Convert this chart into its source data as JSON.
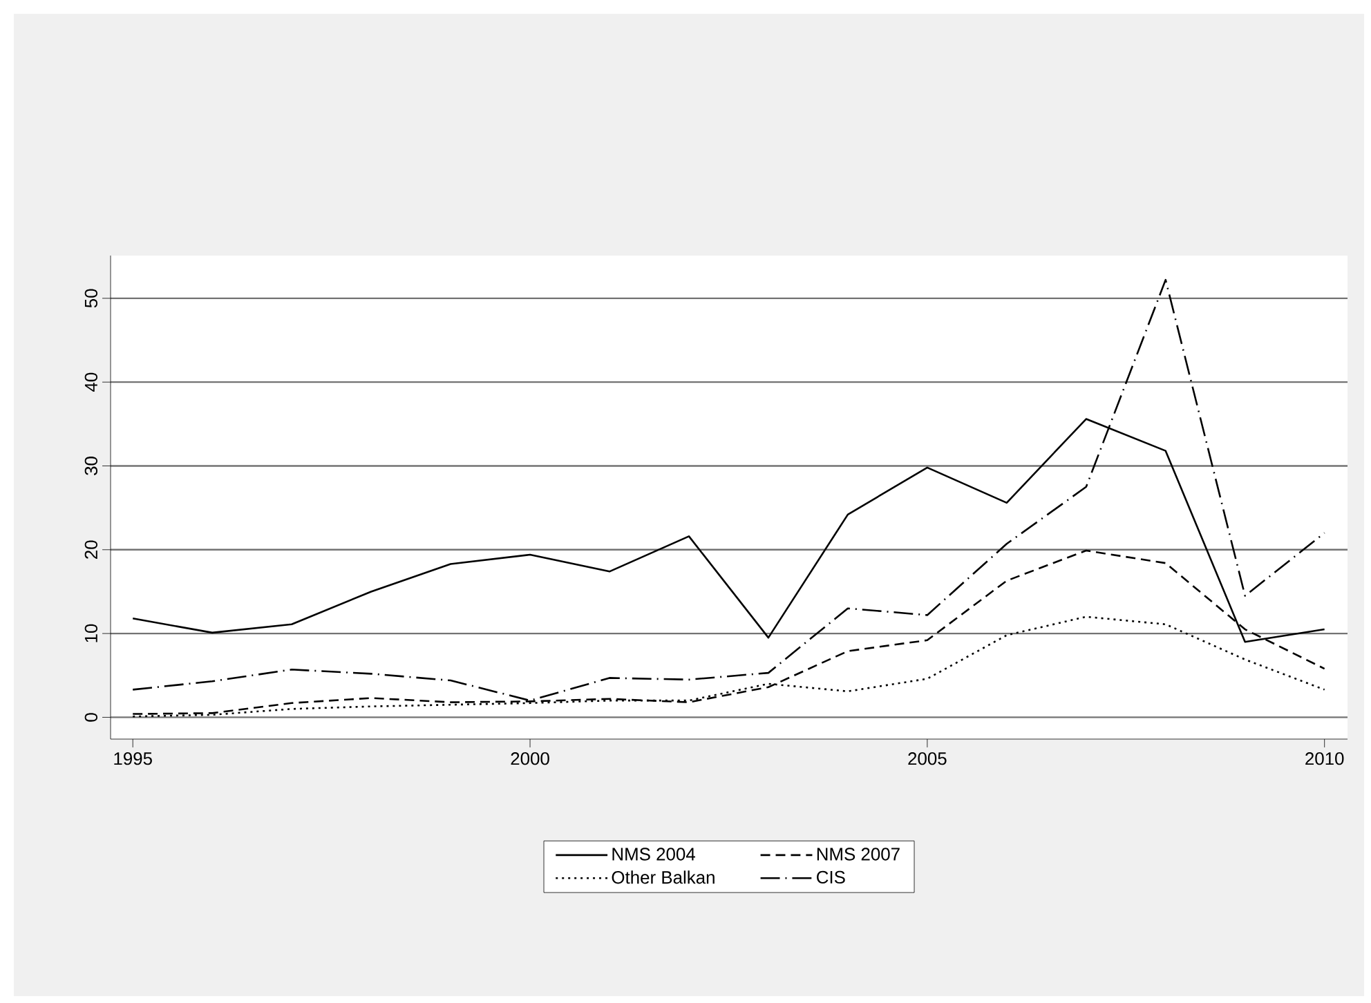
{
  "chart_data": {
    "type": "line",
    "x": [
      1995,
      1996,
      1997,
      1998,
      1999,
      2000,
      2001,
      2002,
      2003,
      2004,
      2005,
      2006,
      2007,
      2008,
      2009,
      2010
    ],
    "series": [
      {
        "name": "NMS 2004",
        "color": "#000000",
        "line_style": "solid",
        "values": [
          11.8,
          10.1,
          11.1,
          15,
          18.3,
          19.4,
          17.4,
          21.6,
          9.5,
          24.2,
          29.8,
          25.6,
          35.6,
          31.8,
          9,
          10.5
        ]
      },
      {
        "name": "NMS 2007",
        "color": "#000000",
        "line_style": "dashed",
        "values": [
          0.4,
          0.5,
          1.7,
          2.3,
          1.8,
          1.9,
          2.2,
          1.8,
          3.6,
          7.9,
          9.2,
          16.3,
          19.9,
          18.4,
          10.5,
          5.8
        ]
      },
      {
        "name": "Other Balkan",
        "color": "#000000",
        "line_style": "dotted",
        "values": [
          0.1,
          0.3,
          1,
          1.3,
          1.5,
          1.7,
          2,
          2,
          4,
          3.1,
          4.6,
          9.8,
          12,
          11.1,
          6.9,
          3.3
        ]
      },
      {
        "name": "CIS",
        "color": "#000000",
        "line_style": "dashdot",
        "values": [
          3.3,
          4.3,
          5.7,
          5.2,
          4.4,
          2,
          4.7,
          4.5,
          5.3,
          13,
          12.2,
          20.7,
          27.5,
          52.2,
          14.5,
          22
        ]
      }
    ],
    "xlim": [
      1994.72,
      2010.29
    ],
    "ylim": [
      -2.6,
      55.1
    ],
    "xticks": [
      1995,
      2000,
      2005,
      2010
    ],
    "yticks": [
      0,
      10,
      20,
      30,
      40,
      50
    ],
    "grid": "y",
    "legend": "bottom",
    "marker": "none"
  }
}
